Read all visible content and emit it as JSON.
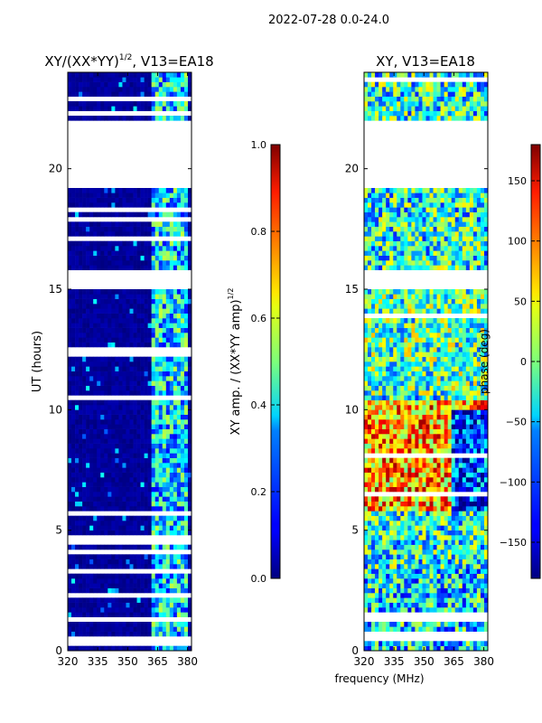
{
  "figure_title": "2022-07-28 0.0-24.0",
  "chart_data": [
    {
      "type": "heatmap",
      "title": "XY/(XX*YY)^1/2, V13=EA18",
      "title_main": "XY/(XX*YY)",
      "title_sup": "1/2",
      "title_tail": ", V13=EA18",
      "xlabel": "",
      "ylabel": "UT (hours)",
      "xlim": [
        320,
        382
      ],
      "ylim": [
        0,
        24
      ],
      "xticks": [
        320,
        335,
        350,
        365,
        380
      ],
      "yticks": [
        0,
        5,
        10,
        15,
        20
      ],
      "colorbar": {
        "label": "XY amp. / (XX*YY amp)^1/2",
        "label_main": "XY amp. / (XX*YY amp)",
        "label_sup": "1/2",
        "range": [
          0.0,
          1.0
        ],
        "ticks": [
          "0.0",
          "0.2",
          "0.4",
          "0.6",
          "0.8",
          "1.0"
        ],
        "tick_values": [
          0.0,
          0.2,
          0.4,
          0.6,
          0.8,
          1.0
        ]
      },
      "data_gaps_hours": [
        [
          0.35,
          0.55
        ],
        [
          1.3,
          1.45
        ],
        [
          19.2,
          22.0
        ],
        [
          15.0,
          15.8
        ]
      ]
    },
    {
      "type": "heatmap",
      "title": "XY, V13=EA18",
      "xlabel": "frequency (MHz)",
      "ylabel": "",
      "xlim": [
        320,
        382
      ],
      "ylim": [
        0,
        24
      ],
      "xticks": [
        320,
        335,
        350,
        365,
        380
      ],
      "yticks": [
        0,
        5,
        10,
        15,
        20
      ],
      "colorbar": {
        "label": "phase (deg)",
        "range": [
          -180,
          180
        ],
        "ticks": [
          "−150",
          "−100",
          "−50",
          "0",
          "50",
          "100",
          "150"
        ],
        "tick_values": [
          -150,
          -100,
          -50,
          0,
          50,
          100,
          150
        ]
      },
      "data_gaps_hours": [
        [
          0.35,
          0.55
        ],
        [
          1.3,
          1.45
        ],
        [
          19.2,
          22.0
        ],
        [
          15.0,
          15.8
        ]
      ]
    }
  ]
}
